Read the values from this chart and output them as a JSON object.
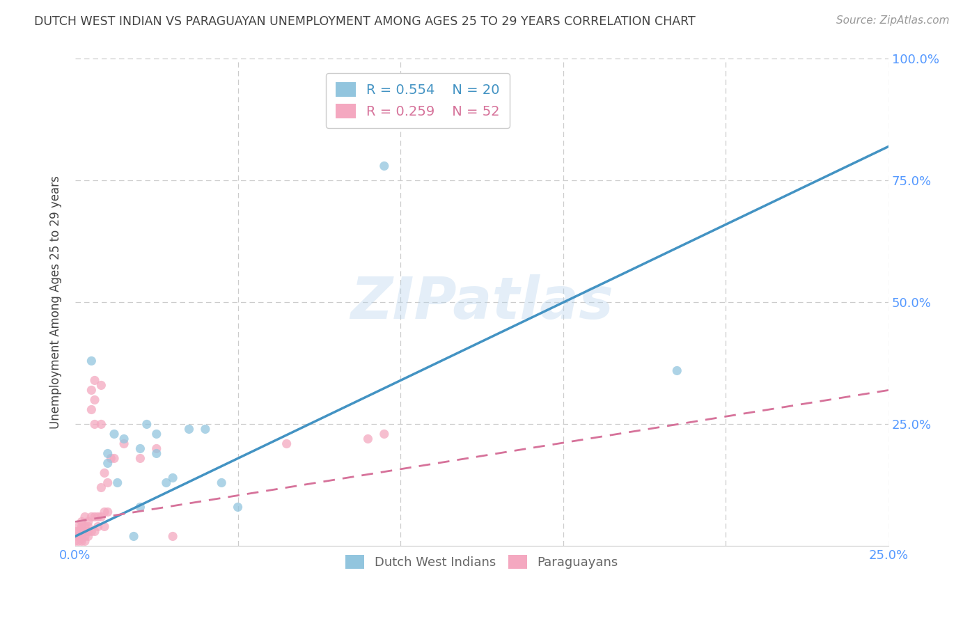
{
  "title": "DUTCH WEST INDIAN VS PARAGUAYAN UNEMPLOYMENT AMONG AGES 25 TO 29 YEARS CORRELATION CHART",
  "source": "Source: ZipAtlas.com",
  "ylabel": "Unemployment Among Ages 25 to 29 years",
  "xlim": [
    0.0,
    0.25
  ],
  "ylim": [
    0.0,
    1.0
  ],
  "xticks": [
    0.0,
    0.05,
    0.1,
    0.15,
    0.2,
    0.25
  ],
  "yticks": [
    0.0,
    0.25,
    0.5,
    0.75,
    1.0
  ],
  "xtick_labels": [
    "0.0%",
    "",
    "",
    "",
    "",
    "25.0%"
  ],
  "ytick_labels_right": [
    "",
    "25.0%",
    "50.0%",
    "75.0%",
    "100.0%"
  ],
  "background_color": "#ffffff",
  "grid_color": "#cccccc",
  "watermark_text": "ZIPatlas",
  "dwi_color": "#92c5de",
  "par_color": "#f4a8c0",
  "dwi_line_color": "#4393c3",
  "par_line_color": "#d6729a",
  "axis_tick_color": "#5599ff",
  "title_color": "#444444",
  "source_color": "#999999",
  "legend_dwi_R": 0.554,
  "legend_dwi_N": 20,
  "legend_par_R": 0.259,
  "legend_par_N": 52,
  "dwi_points": [
    [
      0.005,
      0.38
    ],
    [
      0.01,
      0.19
    ],
    [
      0.01,
      0.17
    ],
    [
      0.012,
      0.23
    ],
    [
      0.013,
      0.13
    ],
    [
      0.015,
      0.22
    ],
    [
      0.018,
      0.02
    ],
    [
      0.02,
      0.2
    ],
    [
      0.02,
      0.08
    ],
    [
      0.022,
      0.25
    ],
    [
      0.025,
      0.19
    ],
    [
      0.025,
      0.23
    ],
    [
      0.028,
      0.13
    ],
    [
      0.03,
      0.14
    ],
    [
      0.035,
      0.24
    ],
    [
      0.04,
      0.24
    ],
    [
      0.045,
      0.13
    ],
    [
      0.05,
      0.08
    ],
    [
      0.095,
      0.78
    ],
    [
      0.185,
      0.36
    ]
  ],
  "par_points": [
    [
      0.0,
      0.03
    ],
    [
      0.0,
      0.02
    ],
    [
      0.0,
      0.01
    ],
    [
      0.001,
      0.04
    ],
    [
      0.001,
      0.03
    ],
    [
      0.001,
      0.02
    ],
    [
      0.001,
      0.01
    ],
    [
      0.002,
      0.05
    ],
    [
      0.002,
      0.04
    ],
    [
      0.002,
      0.035
    ],
    [
      0.002,
      0.025
    ],
    [
      0.002,
      0.02
    ],
    [
      0.002,
      0.015
    ],
    [
      0.002,
      0.01
    ],
    [
      0.003,
      0.06
    ],
    [
      0.003,
      0.04
    ],
    [
      0.003,
      0.03
    ],
    [
      0.003,
      0.02
    ],
    [
      0.003,
      0.01
    ],
    [
      0.004,
      0.05
    ],
    [
      0.004,
      0.04
    ],
    [
      0.004,
      0.03
    ],
    [
      0.004,
      0.02
    ],
    [
      0.005,
      0.32
    ],
    [
      0.005,
      0.28
    ],
    [
      0.005,
      0.06
    ],
    [
      0.005,
      0.03
    ],
    [
      0.006,
      0.34
    ],
    [
      0.006,
      0.3
    ],
    [
      0.006,
      0.25
    ],
    [
      0.006,
      0.06
    ],
    [
      0.006,
      0.03
    ],
    [
      0.007,
      0.06
    ],
    [
      0.007,
      0.04
    ],
    [
      0.008,
      0.33
    ],
    [
      0.008,
      0.25
    ],
    [
      0.008,
      0.12
    ],
    [
      0.008,
      0.06
    ],
    [
      0.009,
      0.15
    ],
    [
      0.009,
      0.07
    ],
    [
      0.009,
      0.04
    ],
    [
      0.01,
      0.13
    ],
    [
      0.01,
      0.07
    ],
    [
      0.011,
      0.18
    ],
    [
      0.012,
      0.18
    ],
    [
      0.015,
      0.21
    ],
    [
      0.02,
      0.18
    ],
    [
      0.025,
      0.2
    ],
    [
      0.03,
      0.02
    ],
    [
      0.065,
      0.21
    ],
    [
      0.09,
      0.22
    ],
    [
      0.095,
      0.23
    ]
  ],
  "dwi_line_x": [
    0.0,
    0.25
  ],
  "dwi_line_y": [
    0.02,
    0.82
  ],
  "par_line_x": [
    0.0,
    0.25
  ],
  "par_line_y": [
    0.05,
    0.32
  ]
}
